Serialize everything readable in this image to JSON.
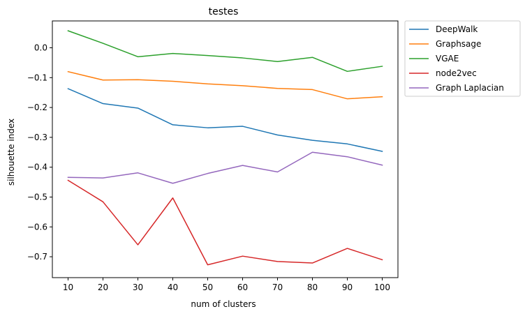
{
  "chart_data": {
    "type": "line",
    "title": "testes",
    "xlabel": "num of clusters",
    "ylabel": "silhouette index",
    "x": [
      10,
      20,
      30,
      40,
      50,
      60,
      70,
      80,
      90,
      100
    ],
    "xticks": [
      10,
      20,
      30,
      40,
      50,
      60,
      70,
      80,
      90,
      100
    ],
    "xlim": [
      5.5,
      104.5
    ],
    "ylim": [
      -0.77,
      0.09
    ],
    "yticks": [
      0.0,
      -0.1,
      -0.2,
      -0.3,
      -0.4,
      -0.5,
      -0.6,
      -0.7
    ],
    "ytick_labels": [
      "0.0",
      "−0.1",
      "−0.2",
      "−0.3",
      "−0.4",
      "−0.5",
      "−0.6",
      "−0.7"
    ],
    "grid": false,
    "legend_position": "outside-top-right",
    "series": [
      {
        "name": "DeepWalk",
        "color": "#1f77b4",
        "values": [
          -0.137,
          -0.187,
          -0.202,
          -0.258,
          -0.268,
          -0.263,
          -0.292,
          -0.31,
          -0.322,
          -0.347
        ]
      },
      {
        "name": "Graphsage",
        "color": "#ff7f0e",
        "values": [
          -0.08,
          -0.108,
          -0.107,
          -0.112,
          -0.121,
          -0.127,
          -0.136,
          -0.14,
          -0.171,
          -0.164
        ]
      },
      {
        "name": "VGAE",
        "color": "#2ca02c",
        "values": [
          0.057,
          0.015,
          -0.03,
          -0.019,
          -0.026,
          -0.034,
          -0.046,
          -0.032,
          -0.079,
          -0.062
        ]
      },
      {
        "name": "node2vec",
        "color": "#d62728",
        "values": [
          -0.444,
          -0.516,
          -0.66,
          -0.503,
          -0.727,
          -0.698,
          -0.716,
          -0.721,
          -0.672,
          -0.71
        ]
      },
      {
        "name": "Graph Laplacian",
        "color": "#9467bd",
        "values": [
          -0.434,
          -0.436,
          -0.419,
          -0.454,
          -0.421,
          -0.394,
          -0.416,
          -0.35,
          -0.365,
          -0.393
        ]
      }
    ]
  }
}
